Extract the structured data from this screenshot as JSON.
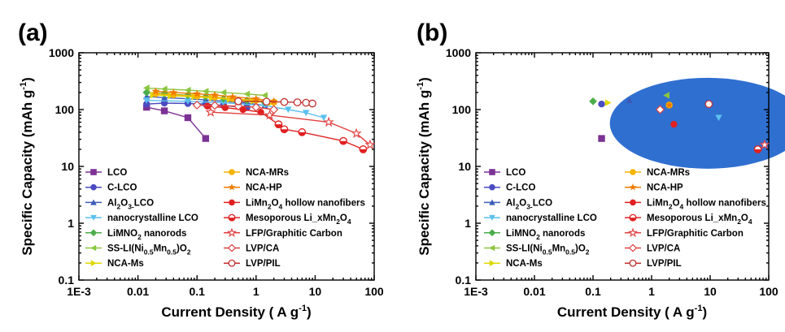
{
  "chart_data": [
    {
      "panel": "(a)",
      "type": "line",
      "xlabel": "Current Density ( A g-1)",
      "ylabel": "Specific Capacity (mAh g-1)",
      "xscale": "log",
      "yscale": "log",
      "xlim": [
        0.001,
        100
      ],
      "ylim": [
        0.1,
        1000
      ],
      "x_ticks": [
        "1E-3",
        "0.01",
        "0.1",
        "1",
        "10",
        "100"
      ],
      "y_ticks": [
        "0.1",
        "1",
        "10",
        "100",
        "1000"
      ],
      "legend_position": "bottom",
      "series": [
        {
          "name": "LCO",
          "color": "#7b3294",
          "marker": "square",
          "x": [
            0.014,
            0.028,
            0.07,
            0.14
          ],
          "y": [
            110,
            95,
            72,
            31
          ]
        },
        {
          "name": "C-LCO",
          "color": "#4b4bc2",
          "marker": "circle",
          "x": [
            0.014,
            0.028,
            0.07,
            0.14,
            0.28,
            0.7
          ],
          "y": [
            125,
            130,
            128,
            125,
            118,
            108
          ]
        },
        {
          "name": "Al2O3-LCO",
          "color": "#3b5bb8",
          "marker": "triangle-up",
          "x": [
            0.014,
            0.028,
            0.07,
            0.14,
            0.28,
            0.7,
            1.4
          ],
          "y": [
            170,
            162,
            155,
            148,
            140,
            130,
            118
          ]
        },
        {
          "name": "nanocrystalline LCO",
          "color": "#5bc0ee",
          "marker": "triangle-down",
          "x": [
            0.014,
            0.07,
            0.28,
            1.4,
            3.5,
            7,
            14
          ],
          "y": [
            145,
            140,
            132,
            118,
            100,
            88,
            72
          ]
        },
        {
          "name": "LiMNO2 nanorods",
          "color": "#4bae4b",
          "marker": "diamond",
          "x": [
            0.014,
            0.028,
            0.07,
            0.14,
            0.28,
            0.7,
            1.4
          ],
          "y": [
            200,
            190,
            178,
            168,
            155,
            145,
            135
          ]
        },
        {
          "name": "SS-LI(Ni0.5Mn0.5)O2",
          "color": "#8cc63f",
          "marker": "triangle-left",
          "x": [
            0.014,
            0.028,
            0.07,
            0.14,
            0.28,
            0.7,
            1.4
          ],
          "y": [
            240,
            230,
            220,
            210,
            200,
            188,
            178
          ]
        },
        {
          "name": "NCA-Ms",
          "color": "#e0d800",
          "marker": "triangle-right",
          "x": [
            0.018,
            0.036,
            0.09,
            0.18,
            0.36,
            0.9,
            1.8
          ],
          "y": [
            180,
            175,
            168,
            160,
            152,
            142,
            132
          ]
        },
        {
          "name": "NCA-MRs",
          "color": "#f5b400",
          "marker": "circle",
          "x": [
            0.02,
            0.04,
            0.1,
            0.2,
            0.4,
            1,
            2
          ],
          "y": [
            190,
            182,
            172,
            165,
            155,
            145,
            135
          ]
        },
        {
          "name": "NCA-HP",
          "color": "#f07a00",
          "marker": "star",
          "x": [
            0.02,
            0.04,
            0.1,
            0.2,
            0.4,
            1,
            2
          ],
          "y": [
            210,
            200,
            190,
            180,
            168,
            155,
            140
          ]
        },
        {
          "name": "LiMn2O4 hollow nanofibers",
          "color": "#e02020",
          "marker": "circle",
          "x": [
            0.15,
            0.3,
            0.6,
            1.2,
            2.4
          ],
          "y": [
            115,
            108,
            100,
            90,
            55
          ]
        },
        {
          "name": "Mesoporous LixMn2O4",
          "color": "#e02020",
          "marker": "circle-half",
          "x": [
            2.4,
            3,
            6,
            30,
            65
          ],
          "y": [
            55,
            45,
            40,
            28,
            20
          ]
        },
        {
          "name": "LFP/Graphitic Carbon",
          "color": "#e04040",
          "marker": "star-open",
          "x": [
            0.17,
            1.7,
            17,
            50,
            85
          ],
          "y": [
            90,
            80,
            60,
            38,
            24
          ]
        },
        {
          "name": "LVP/CA",
          "color": "#e04040",
          "marker": "diamond-open",
          "x": [
            0.1,
            0.2,
            0.5,
            1,
            2
          ],
          "y": [
            120,
            118,
            115,
            110,
            100
          ]
        },
        {
          "name": "LVP/PIL",
          "color": "#c03030",
          "marker": "circle-open",
          "x": [
            0.5,
            1.5,
            3,
            5,
            7,
            9
          ],
          "y": [
            140,
            138,
            136,
            134,
            132,
            128
          ]
        }
      ]
    },
    {
      "panel": "(b)",
      "type": "scatter",
      "xlabel": "Current Density ( A g-1)",
      "ylabel": "Specific Capacity (mAh g-1)",
      "xscale": "log",
      "yscale": "log",
      "xlim": [
        0.001,
        100
      ],
      "ylim": [
        0.1,
        1000
      ],
      "x_ticks": [
        "1E-3",
        "0.01",
        "0.1",
        "1",
        "10",
        "100"
      ],
      "y_ticks": [
        "0.1",
        "1",
        "10",
        "100",
        "1000"
      ],
      "legend_position": "bottom",
      "region": {
        "color": "#2f6fd0",
        "center_x": 9,
        "center_y": 70,
        "note": "filled ellipse enclosing all points"
      },
      "series": [
        {
          "name": "LCO",
          "color": "#7b3294",
          "marker": "square",
          "x": [
            0.14
          ],
          "y": [
            31
          ]
        },
        {
          "name": "C-LCO",
          "color": "#4b4bc2",
          "marker": "circle",
          "x": [
            0.14
          ],
          "y": [
            125
          ]
        },
        {
          "name": "Al2O3-LCO",
          "color": "#3b5bb8",
          "marker": "triangle-up",
          "x": [
            0.42
          ],
          "y": [
            145
          ]
        },
        {
          "name": "nanocrystalline LCO",
          "color": "#5bc0ee",
          "marker": "triangle-down",
          "x": [
            14
          ],
          "y": [
            72
          ]
        },
        {
          "name": "LiMNO2 nanorods",
          "color": "#4bae4b",
          "marker": "diamond",
          "x": [
            0.1
          ],
          "y": [
            140
          ]
        },
        {
          "name": "SS-LI(Ni0.5Mn0.5)O2",
          "color": "#8cc63f",
          "marker": "triangle-left",
          "x": [
            1.8
          ],
          "y": [
            178
          ]
        },
        {
          "name": "NCA-Ms",
          "color": "#e0d800",
          "marker": "triangle-right",
          "x": [
            0.18
          ],
          "y": [
            132
          ]
        },
        {
          "name": "NCA-MRs",
          "color": "#f5b400",
          "marker": "circle",
          "x": [
            2
          ],
          "y": [
            120
          ]
        },
        {
          "name": "NCA-HP",
          "color": "#f07a00",
          "marker": "star",
          "x": [
            2
          ],
          "y": [
            120
          ]
        },
        {
          "name": "LiMn2O4 hollow nanofibers",
          "color": "#e02020",
          "marker": "circle",
          "x": [
            2.4
          ],
          "y": [
            55
          ]
        },
        {
          "name": "Mesoporous LixMn2O4",
          "color": "#e02020",
          "marker": "circle-half",
          "x": [
            65
          ],
          "y": [
            20
          ]
        },
        {
          "name": "LFP/Graphitic Carbon",
          "color": "#e04040",
          "marker": "star-open",
          "x": [
            85
          ],
          "y": [
            24
          ]
        },
        {
          "name": "LVP/CA",
          "color": "#e04040",
          "marker": "diamond-open",
          "x": [
            1.4
          ],
          "y": [
            100
          ]
        },
        {
          "name": "LVP/PIL",
          "color": "#c03030",
          "marker": "circle-open",
          "x": [
            9.5
          ],
          "y": [
            125
          ]
        }
      ]
    }
  ]
}
